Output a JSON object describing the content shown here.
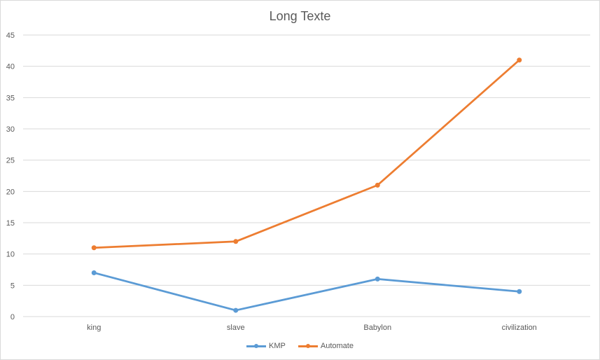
{
  "chart_data": {
    "type": "line",
    "title": "Long Texte",
    "categories": [
      "king",
      "slave",
      "Babylon",
      "civilization"
    ],
    "series": [
      {
        "name": "KMP",
        "values": [
          7,
          1,
          6,
          4
        ],
        "color": "#5b9bd5"
      },
      {
        "name": "Automate",
        "values": [
          11,
          12,
          21,
          41
        ],
        "color": "#ed7d31"
      }
    ],
    "ylim": [
      0,
      45
    ],
    "yticks": [
      0,
      5,
      10,
      15,
      20,
      25,
      30,
      35,
      40,
      45
    ],
    "grid": true,
    "legend": "bottom"
  }
}
